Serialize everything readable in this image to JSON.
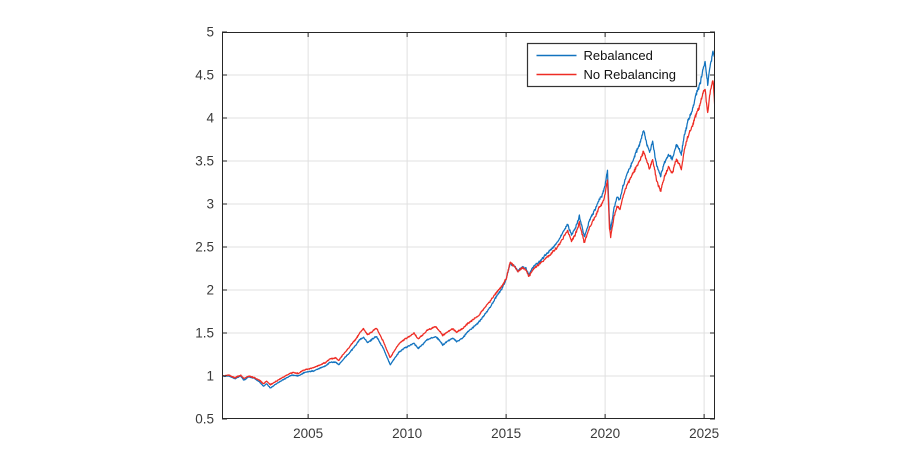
{
  "figure": {
    "background": "#ffffff",
    "legend_title_rebalanced": "Rebalanced",
    "legend_title_no_rebalancing": "No Rebalancing"
  },
  "chart_data": {
    "type": "line",
    "title": "",
    "xlabel": "",
    "ylabel": "",
    "xlim": [
      2000.65,
      2025.55
    ],
    "ylim": [
      0.5,
      5
    ],
    "xticks": [
      2005,
      2010,
      2015,
      2020,
      2025
    ],
    "xtick_labels": [
      "2005",
      "2010",
      "2015",
      "2020",
      "2025"
    ],
    "yticks": [
      0.5,
      1,
      1.5,
      2,
      2.5,
      3,
      3.5,
      4,
      4.5,
      5
    ],
    "ytick_labels": [
      "0.5",
      "1",
      "1.5",
      "2",
      "2.5",
      "3",
      "3.5",
      "4",
      "4.5",
      "5"
    ],
    "grid": true,
    "legend": {
      "position": "top-right",
      "border": true
    },
    "colors": {
      "rebalanced": "#1273bf",
      "no_rebalancing": "#ee2c24",
      "grid": "#e0e0e0",
      "axis": "#262626",
      "tick_label": "#3a3a3a",
      "legend_text": "#111111"
    },
    "series": [
      {
        "name": "Rebalanced",
        "color_key": "rebalanced",
        "points": [
          [
            2000.66,
            1.0
          ],
          [
            2001.0,
            1.0
          ],
          [
            2001.3,
            0.97
          ],
          [
            2001.6,
            1.0
          ],
          [
            2001.75,
            0.95
          ],
          [
            2002.0,
            0.99
          ],
          [
            2002.3,
            0.97
          ],
          [
            2002.55,
            0.93
          ],
          [
            2002.75,
            0.88
          ],
          [
            2002.9,
            0.91
          ],
          [
            2003.1,
            0.86
          ],
          [
            2003.4,
            0.91
          ],
          [
            2003.7,
            0.95
          ],
          [
            2004.0,
            0.99
          ],
          [
            2004.2,
            1.01
          ],
          [
            2004.5,
            1.0
          ],
          [
            2004.8,
            1.04
          ],
          [
            2005.0,
            1.05
          ],
          [
            2005.3,
            1.06
          ],
          [
            2005.6,
            1.09
          ],
          [
            2005.9,
            1.12
          ],
          [
            2006.1,
            1.16
          ],
          [
            2006.4,
            1.16
          ],
          [
            2006.55,
            1.13
          ],
          [
            2006.8,
            1.2
          ],
          [
            2007.0,
            1.25
          ],
          [
            2007.2,
            1.3
          ],
          [
            2007.45,
            1.37
          ],
          [
            2007.6,
            1.42
          ],
          [
            2007.8,
            1.45
          ],
          [
            2008.0,
            1.39
          ],
          [
            2008.2,
            1.42
          ],
          [
            2008.45,
            1.46
          ],
          [
            2008.6,
            1.4
          ],
          [
            2008.8,
            1.32
          ],
          [
            2009.0,
            1.21
          ],
          [
            2009.15,
            1.13
          ],
          [
            2009.35,
            1.2
          ],
          [
            2009.6,
            1.28
          ],
          [
            2009.9,
            1.33
          ],
          [
            2010.1,
            1.35
          ],
          [
            2010.35,
            1.38
          ],
          [
            2010.55,
            1.32
          ],
          [
            2010.8,
            1.37
          ],
          [
            2011.0,
            1.42
          ],
          [
            2011.2,
            1.44
          ],
          [
            2011.45,
            1.46
          ],
          [
            2011.65,
            1.41
          ],
          [
            2011.8,
            1.36
          ],
          [
            2012.0,
            1.4
          ],
          [
            2012.3,
            1.44
          ],
          [
            2012.5,
            1.4
          ],
          [
            2012.8,
            1.44
          ],
          [
            2013.0,
            1.5
          ],
          [
            2013.3,
            1.56
          ],
          [
            2013.6,
            1.62
          ],
          [
            2013.9,
            1.71
          ],
          [
            2014.2,
            1.8
          ],
          [
            2014.5,
            1.92
          ],
          [
            2014.8,
            2.02
          ],
          [
            2015.0,
            2.12
          ],
          [
            2015.2,
            2.31
          ],
          [
            2015.4,
            2.28
          ],
          [
            2015.6,
            2.22
          ],
          [
            2015.8,
            2.27
          ],
          [
            2016.0,
            2.25
          ],
          [
            2016.15,
            2.18
          ],
          [
            2016.4,
            2.28
          ],
          [
            2016.7,
            2.33
          ],
          [
            2017.0,
            2.41
          ],
          [
            2017.3,
            2.48
          ],
          [
            2017.6,
            2.56
          ],
          [
            2017.9,
            2.68
          ],
          [
            2018.1,
            2.77
          ],
          [
            2018.3,
            2.64
          ],
          [
            2018.5,
            2.72
          ],
          [
            2018.7,
            2.86
          ],
          [
            2018.95,
            2.62
          ],
          [
            2019.2,
            2.8
          ],
          [
            2019.5,
            2.94
          ],
          [
            2019.7,
            3.05
          ],
          [
            2019.85,
            3.1
          ],
          [
            2020.0,
            3.22
          ],
          [
            2020.12,
            3.39
          ],
          [
            2020.22,
            2.8
          ],
          [
            2020.28,
            2.7
          ],
          [
            2020.45,
            2.95
          ],
          [
            2020.6,
            3.08
          ],
          [
            2020.75,
            3.05
          ],
          [
            2020.9,
            3.2
          ],
          [
            2021.1,
            3.35
          ],
          [
            2021.4,
            3.5
          ],
          [
            2021.6,
            3.62
          ],
          [
            2021.75,
            3.7
          ],
          [
            2021.95,
            3.86
          ],
          [
            2022.1,
            3.7
          ],
          [
            2022.25,
            3.6
          ],
          [
            2022.4,
            3.72
          ],
          [
            2022.6,
            3.45
          ],
          [
            2022.8,
            3.33
          ],
          [
            2023.0,
            3.48
          ],
          [
            2023.2,
            3.58
          ],
          [
            2023.4,
            3.52
          ],
          [
            2023.6,
            3.7
          ],
          [
            2023.85,
            3.58
          ],
          [
            2024.0,
            3.8
          ],
          [
            2024.2,
            3.98
          ],
          [
            2024.4,
            4.08
          ],
          [
            2024.6,
            4.28
          ],
          [
            2024.8,
            4.4
          ],
          [
            2024.95,
            4.58
          ],
          [
            2025.05,
            4.65
          ],
          [
            2025.18,
            4.4
          ],
          [
            2025.3,
            4.6
          ],
          [
            2025.45,
            4.77
          ],
          [
            2025.55,
            4.7
          ]
        ]
      },
      {
        "name": "No Rebalancing",
        "color_key": "no_rebalancing",
        "points": [
          [
            2000.66,
            1.0
          ],
          [
            2001.0,
            1.01
          ],
          [
            2001.3,
            0.98
          ],
          [
            2001.6,
            1.01
          ],
          [
            2001.75,
            0.97
          ],
          [
            2002.0,
            1.0
          ],
          [
            2002.3,
            0.98
          ],
          [
            2002.55,
            0.95
          ],
          [
            2002.75,
            0.91
          ],
          [
            2002.9,
            0.94
          ],
          [
            2003.1,
            0.9
          ],
          [
            2003.4,
            0.94
          ],
          [
            2003.7,
            0.98
          ],
          [
            2004.0,
            1.02
          ],
          [
            2004.2,
            1.04
          ],
          [
            2004.5,
            1.03
          ],
          [
            2004.8,
            1.07
          ],
          [
            2005.0,
            1.08
          ],
          [
            2005.3,
            1.1
          ],
          [
            2005.6,
            1.13
          ],
          [
            2005.9,
            1.16
          ],
          [
            2006.1,
            1.2
          ],
          [
            2006.4,
            1.21
          ],
          [
            2006.55,
            1.18
          ],
          [
            2006.8,
            1.26
          ],
          [
            2007.0,
            1.31
          ],
          [
            2007.2,
            1.37
          ],
          [
            2007.45,
            1.44
          ],
          [
            2007.6,
            1.5
          ],
          [
            2007.8,
            1.55
          ],
          [
            2008.0,
            1.48
          ],
          [
            2008.2,
            1.51
          ],
          [
            2008.45,
            1.56
          ],
          [
            2008.6,
            1.49
          ],
          [
            2008.8,
            1.4
          ],
          [
            2009.0,
            1.29
          ],
          [
            2009.15,
            1.21
          ],
          [
            2009.35,
            1.29
          ],
          [
            2009.6,
            1.38
          ],
          [
            2009.9,
            1.43
          ],
          [
            2010.1,
            1.46
          ],
          [
            2010.35,
            1.5
          ],
          [
            2010.55,
            1.43
          ],
          [
            2010.8,
            1.48
          ],
          [
            2011.0,
            1.53
          ],
          [
            2011.2,
            1.55
          ],
          [
            2011.45,
            1.57
          ],
          [
            2011.65,
            1.52
          ],
          [
            2011.8,
            1.47
          ],
          [
            2012.0,
            1.51
          ],
          [
            2012.3,
            1.55
          ],
          [
            2012.5,
            1.51
          ],
          [
            2012.8,
            1.55
          ],
          [
            2013.0,
            1.6
          ],
          [
            2013.3,
            1.65
          ],
          [
            2013.6,
            1.7
          ],
          [
            2013.9,
            1.79
          ],
          [
            2014.2,
            1.87
          ],
          [
            2014.5,
            1.97
          ],
          [
            2014.8,
            2.05
          ],
          [
            2015.0,
            2.13
          ],
          [
            2015.2,
            2.32
          ],
          [
            2015.4,
            2.28
          ],
          [
            2015.6,
            2.21
          ],
          [
            2015.8,
            2.26
          ],
          [
            2016.0,
            2.23
          ],
          [
            2016.15,
            2.16
          ],
          [
            2016.4,
            2.25
          ],
          [
            2016.7,
            2.3
          ],
          [
            2017.0,
            2.37
          ],
          [
            2017.3,
            2.43
          ],
          [
            2017.6,
            2.5
          ],
          [
            2017.9,
            2.61
          ],
          [
            2018.1,
            2.7
          ],
          [
            2018.3,
            2.57
          ],
          [
            2018.5,
            2.65
          ],
          [
            2018.7,
            2.78
          ],
          [
            2018.95,
            2.55
          ],
          [
            2019.2,
            2.72
          ],
          [
            2019.5,
            2.85
          ],
          [
            2019.7,
            2.96
          ],
          [
            2019.85,
            3.0
          ],
          [
            2020.0,
            3.12
          ],
          [
            2020.12,
            3.28
          ],
          [
            2020.22,
            2.72
          ],
          [
            2020.28,
            2.62
          ],
          [
            2020.45,
            2.85
          ],
          [
            2020.6,
            2.97
          ],
          [
            2020.75,
            2.94
          ],
          [
            2020.9,
            3.08
          ],
          [
            2021.1,
            3.22
          ],
          [
            2021.4,
            3.35
          ],
          [
            2021.6,
            3.44
          ],
          [
            2021.75,
            3.5
          ],
          [
            2021.95,
            3.62
          ],
          [
            2022.1,
            3.5
          ],
          [
            2022.25,
            3.41
          ],
          [
            2022.4,
            3.52
          ],
          [
            2022.6,
            3.28
          ],
          [
            2022.8,
            3.15
          ],
          [
            2023.0,
            3.32
          ],
          [
            2023.2,
            3.42
          ],
          [
            2023.4,
            3.36
          ],
          [
            2023.6,
            3.53
          ],
          [
            2023.85,
            3.41
          ],
          [
            2024.0,
            3.62
          ],
          [
            2024.2,
            3.8
          ],
          [
            2024.4,
            3.9
          ],
          [
            2024.6,
            4.05
          ],
          [
            2024.8,
            4.15
          ],
          [
            2024.95,
            4.3
          ],
          [
            2025.05,
            4.33
          ],
          [
            2025.18,
            4.05
          ],
          [
            2025.3,
            4.3
          ],
          [
            2025.45,
            4.45
          ],
          [
            2025.55,
            4.1
          ]
        ]
      }
    ]
  }
}
